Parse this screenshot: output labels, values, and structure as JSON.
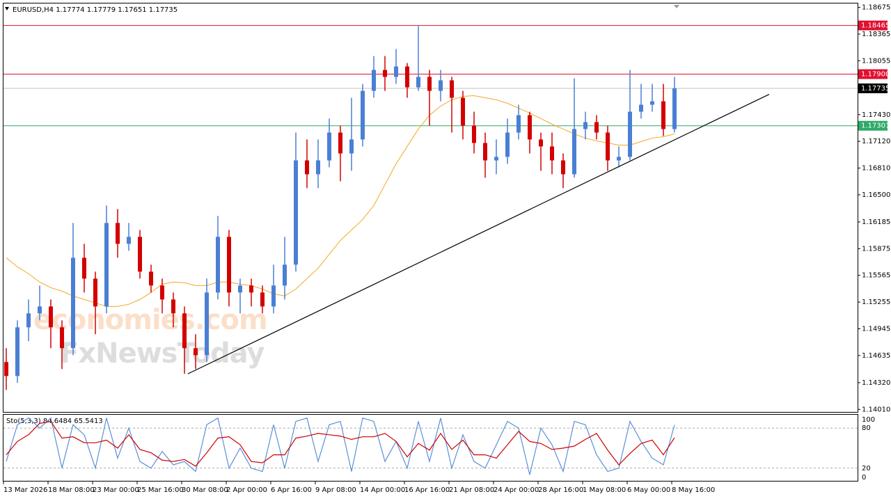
{
  "chart_data": [
    {
      "type": "candlestick",
      "title": "EURUSD,H4  1.17774 1.17779 1.17651 1.17735",
      "categories": [
        "13 Mar 2026",
        null,
        null,
        null,
        "18 Mar 08:00",
        null,
        null,
        null,
        "23 Mar 00:00",
        null,
        null,
        null,
        "25 Mar 16:00",
        null,
        null,
        null,
        "30 Mar 08:00",
        null,
        null,
        null,
        "2 Apr 00:00",
        null,
        null,
        null,
        "6 Apr 16:00",
        null,
        null,
        null,
        "9 Apr 08:00",
        null,
        null,
        null,
        "14 Apr 00:00",
        null,
        null,
        null,
        "16 Apr 16:00",
        null,
        null,
        null,
        "21 Apr 08:00",
        null,
        null,
        null,
        "24 Apr 00:00",
        null,
        null,
        null,
        "28 Apr 16:00",
        null,
        null,
        null,
        "1 May 08:00",
        null,
        null,
        null,
        "6 May 00:00",
        null,
        null,
        null,
        "8 May 16:00"
      ],
      "open": [
        1.14559,
        1.14397,
        1.14962,
        1.15124,
        1.15204,
        1.14962,
        1.1472,
        1.15769,
        1.15527,
        1.15204,
        1.16173,
        1.15931,
        1.16012,
        1.15608,
        1.15447,
        1.15285,
        1.15124,
        1.1472,
        1.14639,
        1.15366,
        1.16012,
        1.15366,
        1.15447,
        1.15366,
        1.15204,
        1.15447,
        1.15689,
        1.16899,
        1.16738,
        1.16899,
        1.17222,
        1.1698,
        1.17142,
        1.17706,
        1.17949,
        1.17868,
        1.17989,
        1.17747,
        1.17868,
        1.17706,
        1.17828,
        1.17626,
        1.17303,
        1.17101,
        1.16899,
        1.1694,
        1.17222,
        1.17424,
        1.17142,
        1.17061,
        1.16899,
        1.16738,
        1.17263,
        1.17343,
        1.17222,
        1.16899,
        1.1694,
        1.17464,
        1.17545,
        1.17585,
        1.17263
      ],
      "high": [
        1.1472,
        1.15043,
        1.15285,
        1.15447,
        1.15285,
        1.15043,
        1.16173,
        1.15931,
        1.15608,
        1.16375,
        1.16334,
        1.16173,
        1.16092,
        1.15689,
        1.15527,
        1.15366,
        1.15204,
        1.14882,
        1.15527,
        1.16254,
        1.16092,
        1.15527,
        1.15527,
        1.15447,
        1.15689,
        1.16012,
        1.17222,
        1.17142,
        1.17142,
        1.17384,
        1.17303,
        1.17626,
        1.17787,
        1.1811,
        1.1811,
        1.18191,
        1.18029,
        1.18457,
        1.17949,
        1.17949,
        1.17868,
        1.17706,
        1.17464,
        1.17222,
        1.17142,
        1.17384,
        1.17545,
        1.17464,
        1.17222,
        1.17222,
        1.1698,
        1.17852,
        1.17464,
        1.17424,
        1.17303,
        1.17061,
        1.17949,
        1.17787,
        1.17787,
        1.17787,
        1.17868
      ],
      "low": [
        1.14236,
        1.14317,
        1.14801,
        1.15043,
        1.1472,
        1.14478,
        1.14639,
        1.15366,
        1.14882,
        1.15124,
        1.15769,
        1.1585,
        1.15527,
        1.15366,
        1.15124,
        1.14962,
        1.14422,
        1.14478,
        1.14559,
        1.15285,
        1.15204,
        1.15124,
        1.15204,
        1.15124,
        1.15124,
        1.15285,
        1.15608,
        1.16577,
        1.16577,
        1.16819,
        1.16657,
        1.16778,
        1.17061,
        1.17626,
        1.17706,
        1.17787,
        1.17626,
        1.17706,
        1.17303,
        1.17585,
        1.17222,
        1.17142,
        1.1698,
        1.16698,
        1.16738,
        1.16859,
        1.17142,
        1.1698,
        1.16778,
        1.16738,
        1.16577,
        1.16698,
        1.17142,
        1.17142,
        1.16778,
        1.16819,
        1.16899,
        1.17384,
        1.17464,
        1.17182,
        1.17222
      ],
      "close": [
        1.14397,
        1.14962,
        1.15124,
        1.15204,
        1.14962,
        1.1472,
        1.15769,
        1.15527,
        1.15204,
        1.16173,
        1.15931,
        1.16012,
        1.15608,
        1.15447,
        1.15285,
        1.15124,
        1.1472,
        1.14639,
        1.15366,
        1.16012,
        1.15366,
        1.15447,
        1.15366,
        1.15204,
        1.15447,
        1.15689,
        1.16899,
        1.16738,
        1.16899,
        1.17222,
        1.1698,
        1.17142,
        1.17706,
        1.17949,
        1.17868,
        1.17989,
        1.17747,
        1.17868,
        1.17706,
        1.17828,
        1.17626,
        1.17303,
        1.17101,
        1.16899,
        1.1694,
        1.17222,
        1.17424,
        1.17142,
        1.17061,
        1.16899,
        1.16738,
        1.17263,
        1.17343,
        1.17222,
        1.16899,
        1.1694,
        1.17464,
        1.17545,
        1.17585,
        1.17263,
        1.17735
      ],
      "up_color": "#4a7fd4",
      "down_color": "#d40000",
      "ma": {
        "color": "#f5a623",
        "values": [
          1.15769,
          1.15664,
          1.15584,
          1.15487,
          1.15422,
          1.15382,
          1.15326,
          1.15285,
          1.15245,
          1.15204,
          1.15204,
          1.15229,
          1.15285,
          1.15366,
          1.15463,
          1.15487,
          1.15479,
          1.15447,
          1.15447,
          1.15487,
          1.15487,
          1.15463,
          1.15447,
          1.15406,
          1.1535,
          1.15326,
          1.15406,
          1.15527,
          1.15648,
          1.1581,
          1.15971,
          1.16092,
          1.16213,
          1.16375,
          1.16617,
          1.16859,
          1.17061,
          1.17263,
          1.17424,
          1.17529,
          1.17602,
          1.17642,
          1.1765,
          1.17626,
          1.17602,
          1.17561,
          1.17505,
          1.17448,
          1.17384,
          1.17319,
          1.17263,
          1.17206,
          1.17158,
          1.17125,
          1.17101,
          1.17077,
          1.17077,
          1.17117,
          1.17158,
          1.17174,
          1.17206
        ]
      },
      "ylim": [
        1.1398,
        1.1872
      ],
      "yticks": [
        1.18675,
        1.18365,
        1.18055,
        {
          "value": 1.1743,
          "label": "1.17430"
        },
        {
          "value": 1.1712,
          "label": "1.17120"
        },
        {
          "value": 1.1681,
          "label": "1.16810"
        },
        {
          "value": 1.165,
          "label": "1.16500"
        },
        1.16185,
        1.15875,
        1.15565,
        1.15255,
        1.14945,
        1.14635,
        {
          "value": 1.1432,
          "label": "1.14320"
        },
        {
          "value": 1.1401,
          "label": "1.14010"
        }
      ],
      "levels": [
        {
          "value": 1.18465,
          "color": "#e0102f"
        },
        {
          "value": 1.179,
          "label": "1.17900",
          "color": "#e0102f"
        },
        {
          "value": 1.17735,
          "color": "#c0c0c0",
          "tag_color": "#000000"
        },
        {
          "value": 1.17301,
          "color": "#2eaa6a"
        }
      ],
      "trendline": {
        "x": [
          16.3,
          68.5
        ],
        "y": [
          1.14422,
          1.17666
        ],
        "color": "#000000"
      },
      "watermark": [
        "economies.com",
        "FxNewsToday"
      ]
    },
    {
      "type": "line",
      "title": "Sto(5,3,3) 84.6484 65.5413",
      "series": [
        {
          "color": "#5b8fd8",
          "values": [
            30,
            85,
            95,
            80,
            95,
            20,
            85,
            70,
            20,
            95,
            35,
            80,
            30,
            20,
            45,
            25,
            30,
            15,
            85,
            95,
            20,
            50,
            20,
            15,
            85,
            20,
            90,
            95,
            30,
            85,
            90,
            15,
            95,
            90,
            30,
            60,
            20,
            90,
            30,
            95,
            20,
            70,
            30,
            20,
            55,
            90,
            80,
            10,
            80,
            55,
            15,
            90,
            85,
            40,
            15,
            20,
            90,
            60,
            35,
            25,
            84.6484
          ]
        },
        {
          "color": "#cc0000",
          "values": [
            40,
            60,
            70,
            87,
            90,
            65,
            67,
            58,
            58,
            62,
            50,
            70,
            48,
            43,
            32,
            30,
            33,
            23,
            43,
            65,
            67,
            55,
            30,
            28,
            40,
            40,
            65,
            68,
            72,
            70,
            68,
            63,
            67,
            67,
            72,
            60,
            37,
            57,
            47,
            72,
            48,
            62,
            40,
            40,
            35,
            55,
            75,
            60,
            57,
            48,
            50,
            53,
            63,
            72,
            47,
            25,
            42,
            57,
            62,
            40,
            65.5413
          ]
        }
      ],
      "ylim": [
        0,
        100
      ],
      "yticks": [
        100,
        80,
        20,
        0
      ],
      "levels": [
        80,
        20
      ]
    }
  ]
}
